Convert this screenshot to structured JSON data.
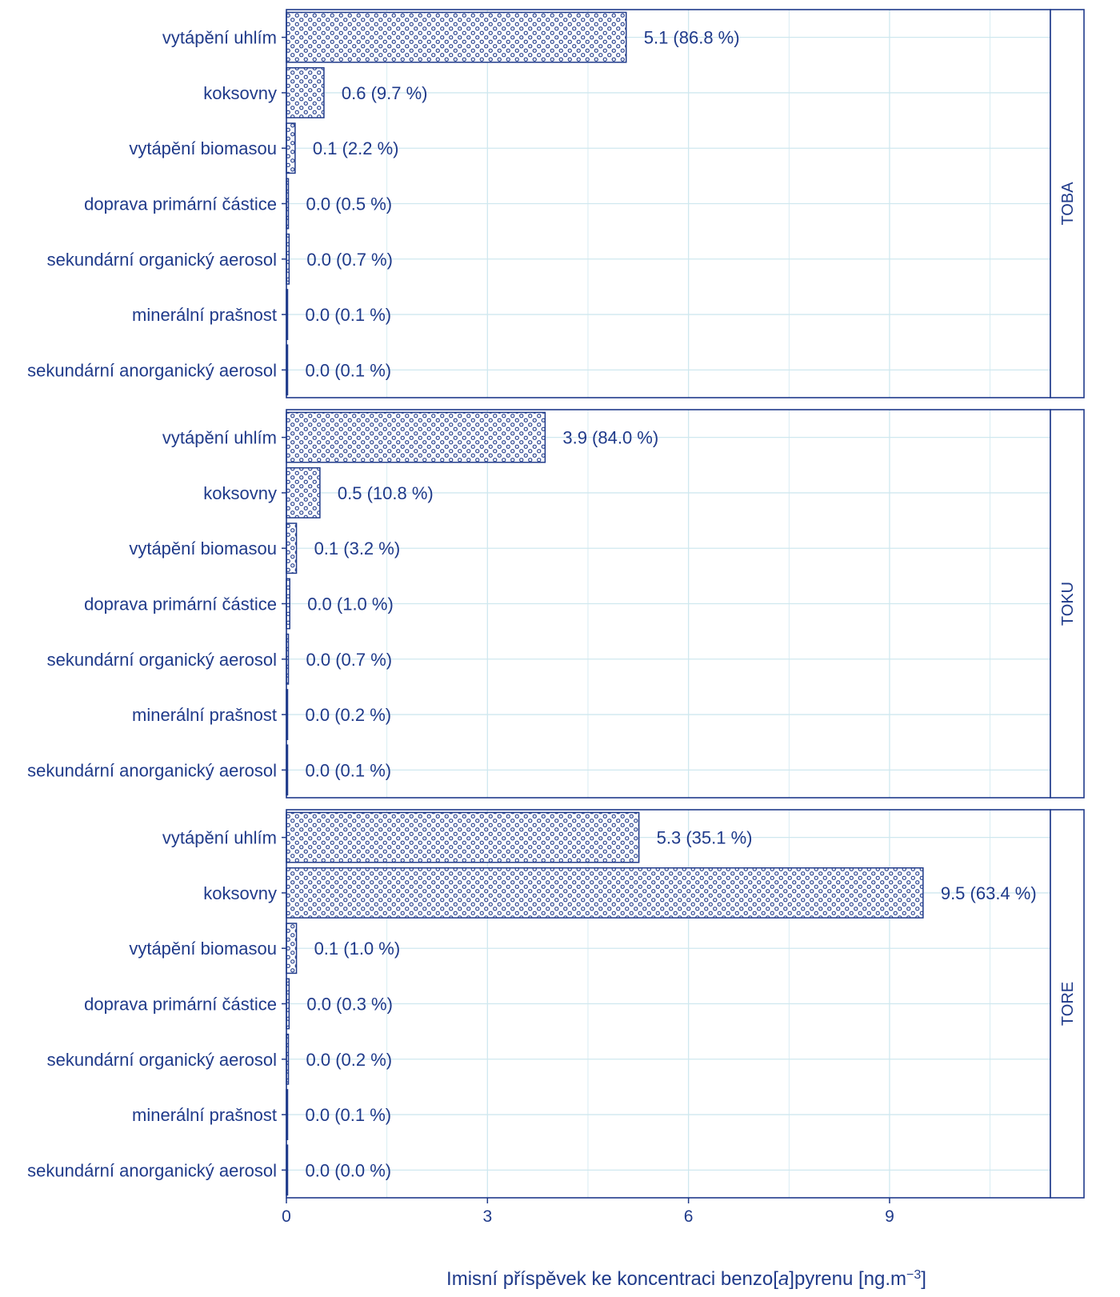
{
  "colors": {
    "ink": "#1f3a8a",
    "grid": "#cfe8ef",
    "background": "#ffffff"
  },
  "chart_data": {
    "type": "bar",
    "orientation": "horizontal",
    "facet_layout": "rows",
    "grid": true,
    "legend": "none",
    "bar_fill_pattern": "open-circle dots",
    "xlabel": {
      "prefix": "Imisní příspěvek ke koncentraci benzo[",
      "italic": "a",
      "middle": "]pyrenu [ng.m",
      "superscript": "−3",
      "suffix": "]"
    },
    "xlim": [
      0,
      11.4
    ],
    "xticks": [
      0,
      3,
      6,
      9
    ],
    "categories": [
      "vytápění uhlím",
      "koksovny",
      "vytápění biomasou",
      "doprava  primární částice",
      "sekundární organický aerosol",
      "minerální prašnost",
      "sekundární anorganický aerosol"
    ],
    "panels": [
      {
        "name": "TOBA",
        "values": [
          5.07,
          0.56,
          0.13,
          0.03,
          0.04,
          0.01,
          0.01
        ],
        "labels": [
          "5.1 (86.8 %)",
          "0.6 (9.7 %)",
          "0.1 (2.2 %)",
          "0.0 (0.5 %)",
          "0.0 (0.7 %)",
          "0.0 (0.1 %)",
          "0.0 (0.1 %)"
        ]
      },
      {
        "name": "TOKU",
        "values": [
          3.86,
          0.5,
          0.15,
          0.05,
          0.03,
          0.01,
          0.005
        ],
        "labels": [
          "3.9 (84.0 %)",
          "0.5 (10.8 %)",
          "0.1 (3.2 %)",
          "0.0 (1.0 %)",
          "0.0 (0.7 %)",
          "0.0 (0.2 %)",
          "0.0 (0.1 %)"
        ]
      },
      {
        "name": "TORE",
        "values": [
          5.26,
          9.5,
          0.15,
          0.04,
          0.03,
          0.01,
          0.003
        ],
        "labels": [
          "5.3 (35.1 %)",
          "9.5 (63.4 %)",
          "0.1 (1.0 %)",
          "0.0 (0.3 %)",
          "0.0 (0.2 %)",
          "0.0 (0.1 %)",
          "0.0 (0.0 %)"
        ]
      }
    ]
  }
}
